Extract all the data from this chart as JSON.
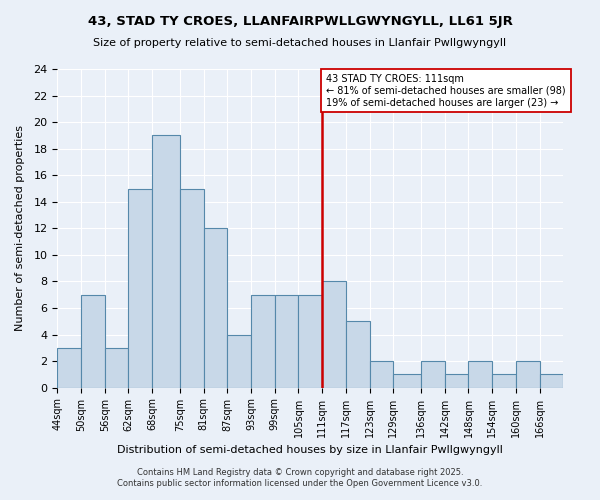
{
  "title1": "43, STAD TY CROES, LLANFAIRPWLLGWYNGYLL, LL61 5JR",
  "title2": "Size of property relative to semi-detached houses in Llanfair Pwllgwyngyll",
  "xlabel": "Distribution of semi-detached houses by size in Llanfair Pwllgwyngyll",
  "ylabel": "Number of semi-detached properties",
  "bin_labels": [
    "44sqm",
    "50sqm",
    "56sqm",
    "62sqm",
    "68sqm",
    "75sqm",
    "81sqm",
    "87sqm",
    "93sqm",
    "99sqm",
    "105sqm",
    "111sqm",
    "117sqm",
    "123sqm",
    "129sqm",
    "136sqm",
    "142sqm",
    "148sqm",
    "154sqm",
    "160sqm",
    "166sqm"
  ],
  "bin_edges": [
    44,
    50,
    56,
    62,
    68,
    75,
    81,
    87,
    93,
    99,
    105,
    111,
    117,
    123,
    129,
    136,
    142,
    148,
    154,
    160,
    166,
    172
  ],
  "counts": [
    3,
    7,
    3,
    15,
    19,
    15,
    12,
    4,
    7,
    7,
    7,
    8,
    5,
    2,
    1,
    2,
    1,
    2,
    1,
    2,
    1
  ],
  "bar_color": "#c8d8e8",
  "bar_edge_color": "#5588aa",
  "reference_line_x": 111,
  "reference_line_color": "#cc0000",
  "annotation_title": "43 STAD TY CROES: 111sqm",
  "annotation_line1": "← 81% of semi-detached houses are smaller (98)",
  "annotation_line2": "19% of semi-detached houses are larger (23) →",
  "annotation_box_color": "#ffffff",
  "annotation_box_edge": "#cc0000",
  "ylim": [
    0,
    24
  ],
  "yticks": [
    0,
    2,
    4,
    6,
    8,
    10,
    12,
    14,
    16,
    18,
    20,
    22,
    24
  ],
  "bg_color": "#eaf0f8",
  "footer1": "Contains HM Land Registry data © Crown copyright and database right 2025.",
  "footer2": "Contains public sector information licensed under the Open Government Licence v3.0."
}
